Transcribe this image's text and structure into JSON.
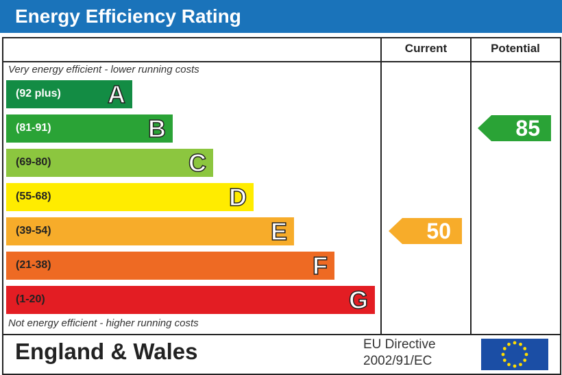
{
  "header": {
    "title": "Energy Efficiency Rating"
  },
  "columns": {
    "current": "Current",
    "potential": "Potential"
  },
  "notes": {
    "top": "Very energy efficient - lower running costs",
    "bottom": "Not energy efficient - higher running costs"
  },
  "footer": {
    "region": "England & Wales",
    "directive_line1": "EU Directive",
    "directive_line2": "2002/91/EC"
  },
  "chart_data": {
    "type": "bar",
    "categories": [
      "A",
      "B",
      "C",
      "D",
      "E",
      "F",
      "G"
    ],
    "bands": [
      {
        "letter": "A",
        "range": "(92 plus)",
        "color": "#138c44",
        "text_color": "#ffffff"
      },
      {
        "letter": "B",
        "range": "(81-91)",
        "color": "#2aa336",
        "text_color": "#ffffff"
      },
      {
        "letter": "C",
        "range": "(69-80)",
        "color": "#8cc63f",
        "text_color": "#222222"
      },
      {
        "letter": "D",
        "range": "(55-68)",
        "color": "#ffec00",
        "text_color": "#222222"
      },
      {
        "letter": "E",
        "range": "(39-54)",
        "color": "#f7ac2a",
        "text_color": "#222222"
      },
      {
        "letter": "F",
        "range": "(21-38)",
        "color": "#ee6a23",
        "text_color": "#222222"
      },
      {
        "letter": "G",
        "range": "(1-20)",
        "color": "#e31d23",
        "text_color": "#222222"
      }
    ],
    "current": {
      "value": 50,
      "band": "E",
      "color": "#f7ac2a"
    },
    "potential": {
      "value": 85,
      "band": "B",
      "color": "#2aa336"
    }
  }
}
